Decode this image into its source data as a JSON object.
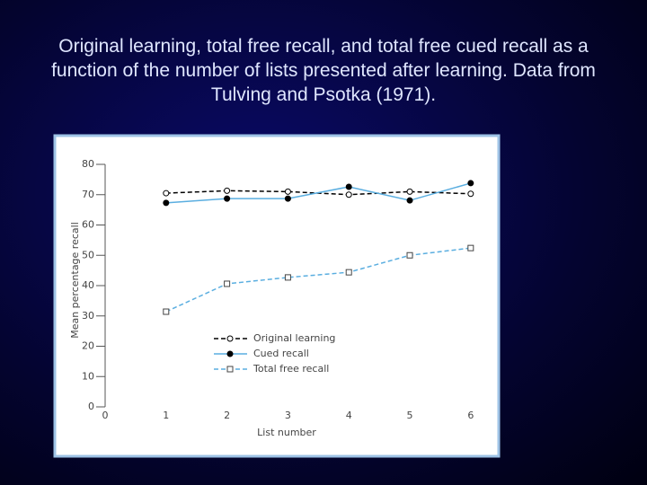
{
  "chart_data": {
    "type": "line",
    "title": "Original learning, total free recall, and total free cued recall as a function of the number of lists presented after learning. Data from Tulving and Psotka (1971).",
    "xlabel": "List number",
    "ylabel": "Mean percentage recall",
    "x": [
      1,
      2,
      3,
      4,
      5,
      6
    ],
    "series": [
      {
        "name": "Original learning",
        "color": "#000000",
        "dashed": true,
        "marker": "open-circle",
        "values": [
          70.5,
          71.3,
          71,
          70,
          71,
          70.3
        ]
      },
      {
        "name": "Cued recall",
        "color": "#5aaee0",
        "dashed": false,
        "marker": "filled-circle",
        "values": [
          67.3,
          68.7,
          68.7,
          72.6,
          68.1,
          73.8
        ]
      },
      {
        "name": "Total free recall",
        "color": "#5aaee0",
        "dashed": true,
        "marker": "open-square",
        "values": [
          31.4,
          40.6,
          42.7,
          44.4,
          50,
          52.4
        ]
      }
    ],
    "xlim": [
      0,
      6.1
    ],
    "xticks": [
      0,
      1,
      2,
      3,
      4,
      5,
      6
    ],
    "ylim": [
      0,
      80
    ],
    "yticks": [
      0,
      10,
      20,
      30,
      40,
      50,
      60,
      70,
      80
    ]
  }
}
